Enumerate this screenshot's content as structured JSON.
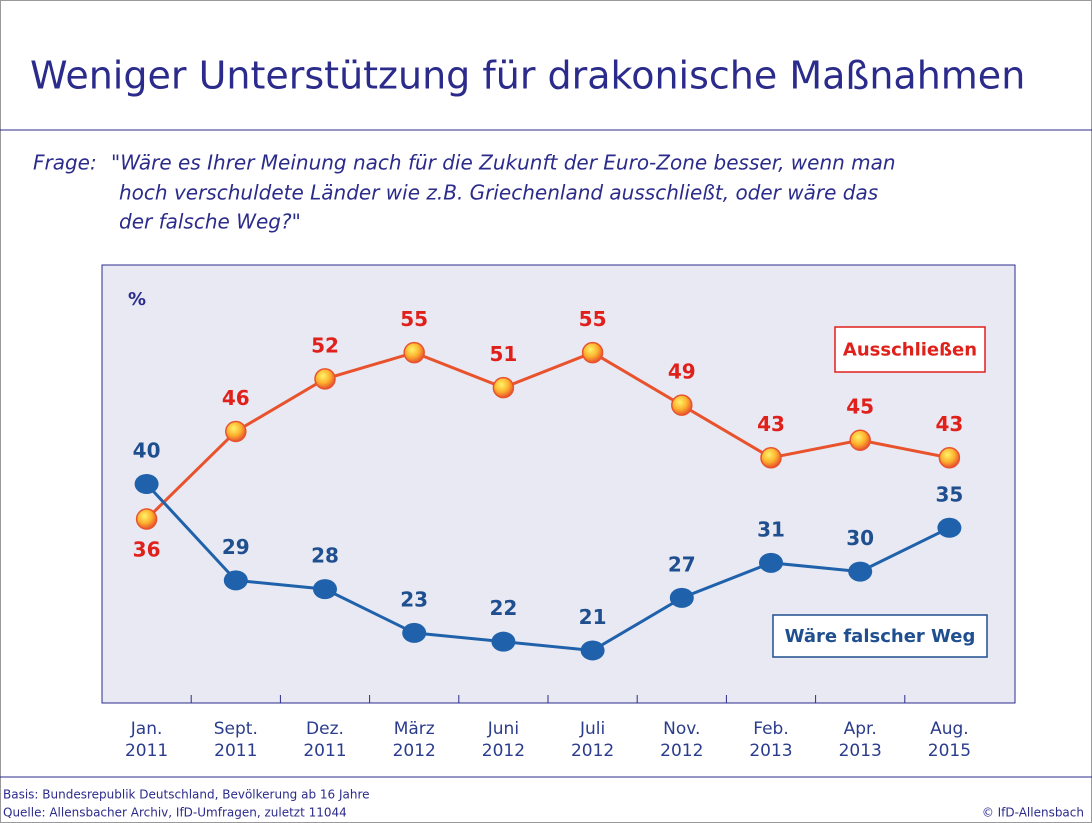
{
  "chart_data": {
    "type": "line",
    "title": "Weniger Unterstützung für drakonische Maßnahmen",
    "question_label": "Frage:",
    "question_lines": [
      "\"Wäre es Ihrer Meinung nach für die Zukunft der Euro-Zone besser, wenn man",
      "hoch verschuldete Länder wie z.B. Griechenland ausschließt, oder wäre das",
      "der falsche Weg?\""
    ],
    "y_label": "%",
    "categories": [
      [
        "Jan.",
        "2011"
      ],
      [
        "Sept.",
        "2011"
      ],
      [
        "Dez.",
        "2011"
      ],
      [
        "März",
        "2012"
      ],
      [
        "Juni",
        "2012"
      ],
      [
        "Juli",
        "2012"
      ],
      [
        "Nov.",
        "2012"
      ],
      [
        "Feb.",
        "2013"
      ],
      [
        "Apr.",
        "2013"
      ],
      [
        "Aug.",
        "2015"
      ]
    ],
    "series": [
      {
        "name": "Ausschließen",
        "color": "#e8532e",
        "label_color": "#e0201a",
        "values": [
          36,
          46,
          52,
          55,
          51,
          55,
          49,
          43,
          45,
          43
        ]
      },
      {
        "name": "Wäre falscher Weg",
        "color": "#1f62ab",
        "label_color": "#1f4f8f",
        "values": [
          40,
          29,
          28,
          23,
          22,
          21,
          27,
          31,
          30,
          35
        ]
      }
    ],
    "ylim": [
      15,
      65
    ],
    "footer_basis": "Basis: Bundesrepublik Deutschland, Bevölkerung ab 16 Jahre",
    "footer_source": "Quelle: Allensbacher Archiv, IfD-Umfragen, zuletzt 11044",
    "copyright": "© IfD-Allensbach"
  }
}
